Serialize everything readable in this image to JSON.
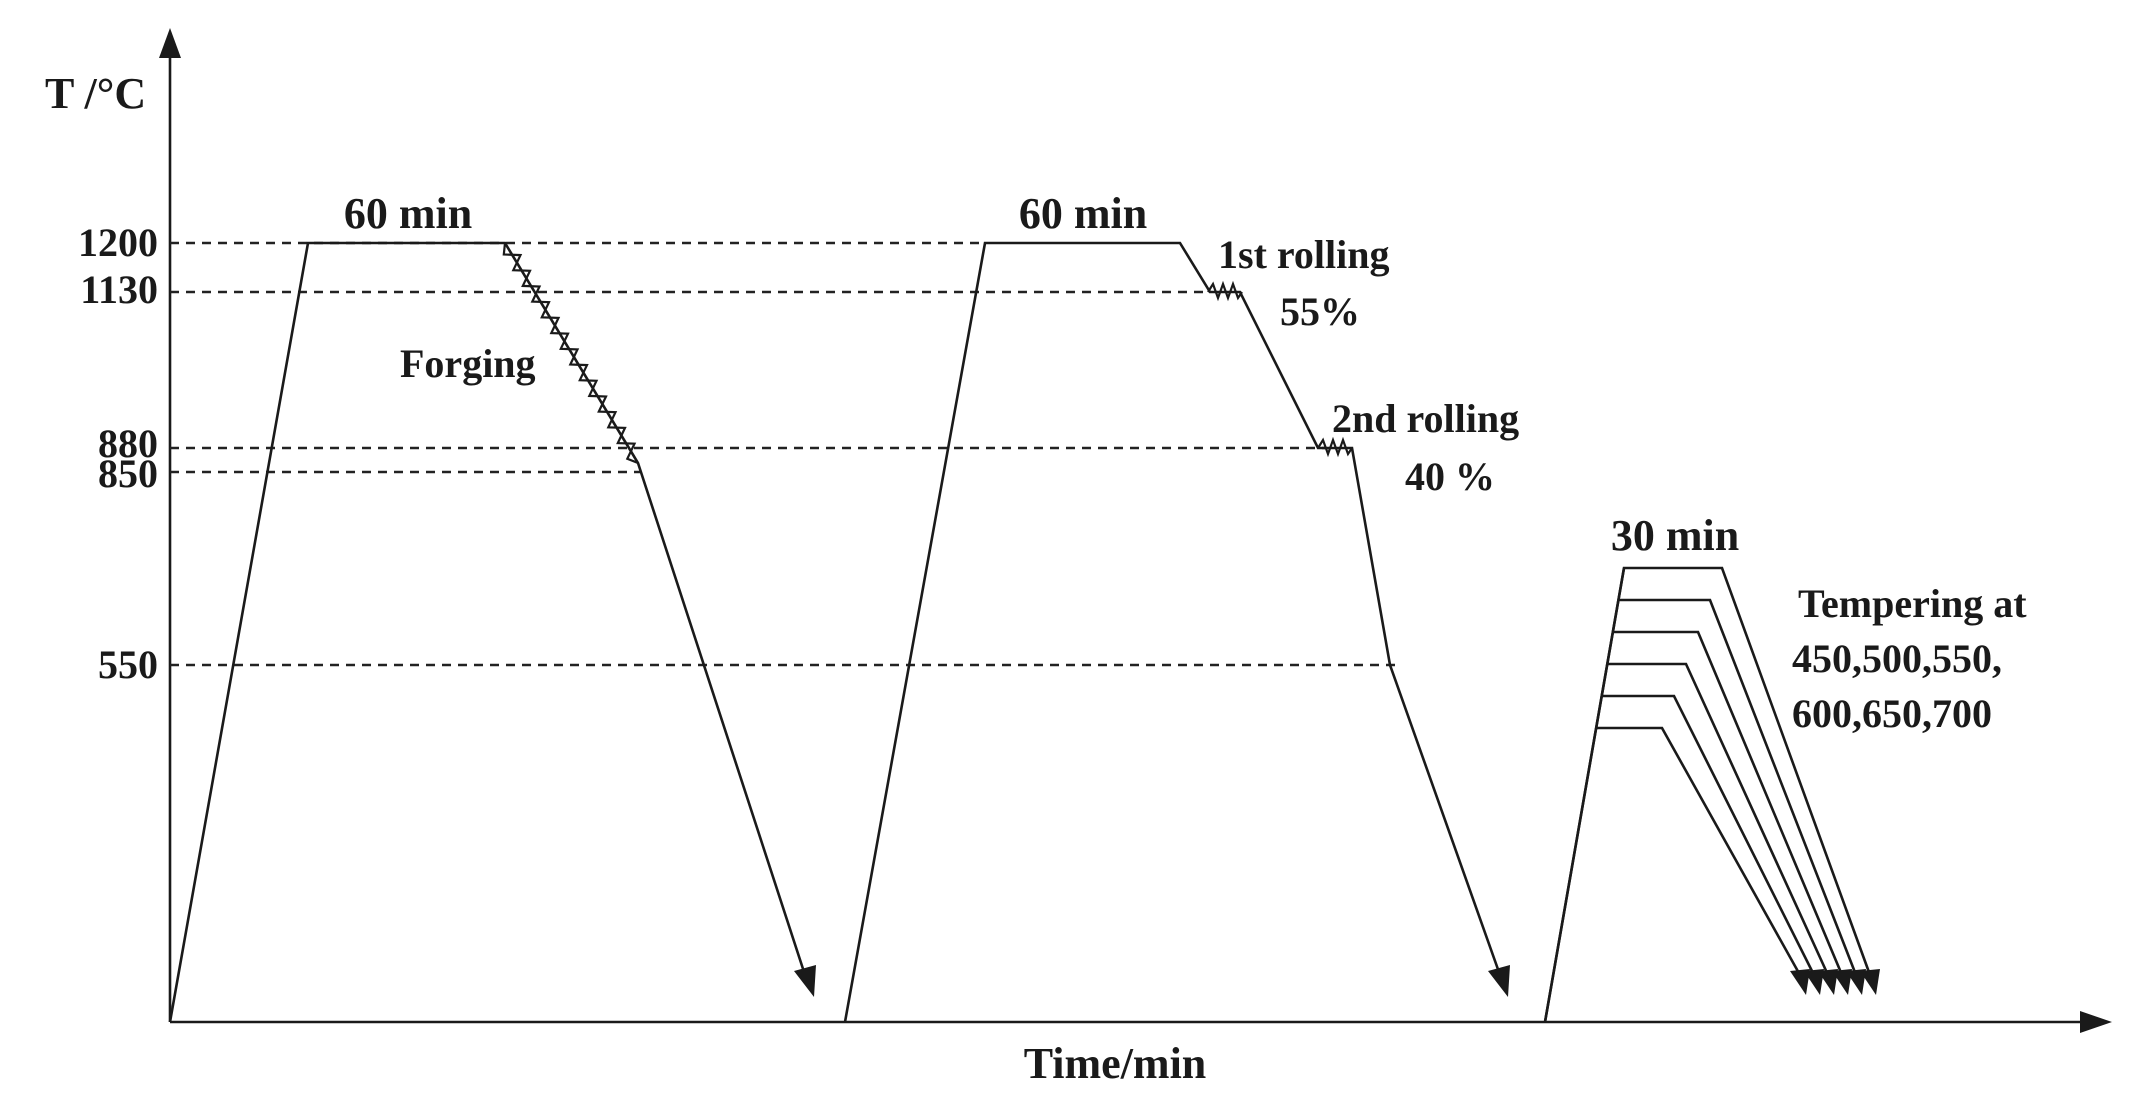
{
  "axes": {
    "y_label": "T /°C",
    "x_label": "Time/min",
    "y_ticks": [
      "1200",
      "1130",
      "880",
      "850",
      "550"
    ]
  },
  "stage1": {
    "hold_label": "60 min",
    "process_label": "Forging"
  },
  "stage2": {
    "hold_label": "60 min",
    "rolling1_label": "1st rolling",
    "rolling1_reduction": "55%",
    "rolling2_label": "2nd rolling",
    "rolling2_reduction": "40 %"
  },
  "stage3": {
    "hold_label": "30 min",
    "tempering_line1": "Tempering at",
    "tempering_line2": "450,500,550,",
    "tempering_line3": "600,650,700"
  },
  "temperatures_c": [
    1200,
    1130,
    880,
    850,
    550
  ],
  "tempering_temperatures_c": [
    450,
    500,
    550,
    600,
    650,
    700
  ],
  "hold_times_min": [
    60,
    60,
    30
  ],
  "rolling_reductions": [
    "55%",
    "40 %"
  ]
}
